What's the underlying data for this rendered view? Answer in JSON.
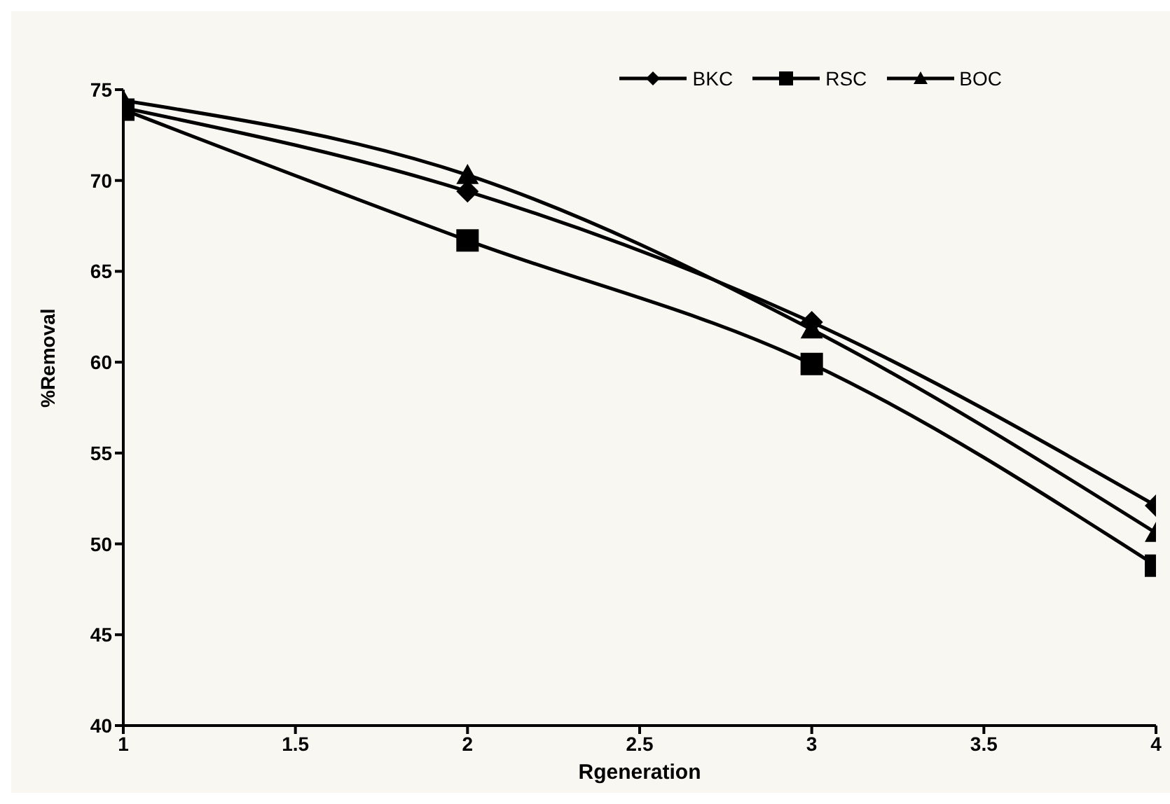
{
  "chart_data": {
    "type": "line",
    "xlabel": "Rgeneration",
    "ylabel": "%Removal",
    "x": [
      1,
      2,
      3,
      4
    ],
    "series": [
      {
        "name": "BKC",
        "color": "#000000",
        "marker": "diamond",
        "values": [
          74.0,
          69.4,
          62.2,
          52.1
        ]
      },
      {
        "name": "RSC",
        "color": "#000000",
        "marker": "square",
        "values": [
          73.9,
          66.7,
          59.9,
          48.8
        ]
      },
      {
        "name": "BOC",
        "color": "#000000",
        "marker": "triangle",
        "values": [
          74.4,
          70.3,
          61.8,
          50.6
        ]
      }
    ],
    "xlim": [
      1,
      4
    ],
    "xticks": [
      1,
      1.5,
      2,
      2.5,
      3,
      3.5,
      4
    ],
    "ylim": [
      40,
      75
    ],
    "yticks": [
      40,
      45,
      50,
      55,
      60,
      65,
      70,
      75
    ],
    "grid": false,
    "legend": "top right",
    "line_style": "solid"
  }
}
